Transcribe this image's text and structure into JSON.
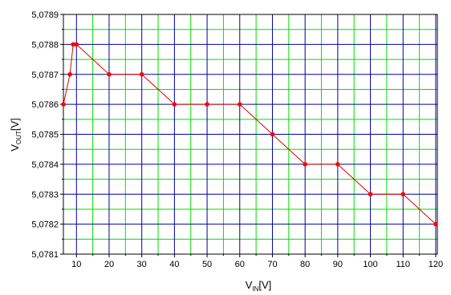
{
  "chart_data": {
    "type": "line",
    "xlabel": {
      "main": "V",
      "sub": "IN",
      "unit": "[V]"
    },
    "ylabel": {
      "main": "V",
      "sub": "OUT",
      "unit": "[V]"
    },
    "xlim": [
      6,
      120.5
    ],
    "ylim": [
      5.0781,
      5.0789
    ],
    "x_ticks": [
      10,
      20,
      30,
      40,
      50,
      60,
      70,
      80,
      90,
      100,
      110,
      120
    ],
    "x_tick_labels": [
      "10",
      "20",
      "30",
      "40",
      "50",
      "60",
      "70",
      "80",
      "90",
      "100",
      "110",
      "120"
    ],
    "x_major_grid": [
      10,
      20,
      30,
      40,
      50,
      60,
      70,
      80,
      90,
      100,
      110,
      120
    ],
    "x_minor_grid": [
      15,
      25,
      35,
      45,
      55,
      65,
      75,
      85,
      95,
      105,
      115
    ],
    "y_ticks": [
      5.0781,
      5.0782,
      5.0783,
      5.0784,
      5.0785,
      5.0786,
      5.0787,
      5.0788,
      5.0789
    ],
    "y_tick_labels": [
      "5,0781",
      "5,0782",
      "5,0783",
      "5,0784",
      "5,0785",
      "5,0786",
      "5,0787",
      "5,0788",
      "5,0789"
    ],
    "y_minor_grid": [
      5.07815,
      5.07825,
      5.07835,
      5.07845,
      5.07855,
      5.07865,
      5.07875,
      5.07885
    ],
    "grid": true,
    "legend": "none",
    "series": [
      {
        "x": [
          6,
          8,
          9,
          10,
          20,
          30,
          40,
          50,
          60,
          70,
          80,
          90,
          100,
          110,
          120
        ],
        "y": [
          5.0786,
          5.0787,
          5.0788,
          5.0788,
          5.0787,
          5.0787,
          5.0786,
          5.0786,
          5.0786,
          5.0785,
          5.0784,
          5.0784,
          5.0783,
          5.0783,
          5.0782
        ]
      }
    ],
    "colors": {
      "major_grid": "#0000a0",
      "minor_grid": "#00e000",
      "line": "#e00000",
      "marker": "#ff0000",
      "axis": "#000000"
    }
  }
}
